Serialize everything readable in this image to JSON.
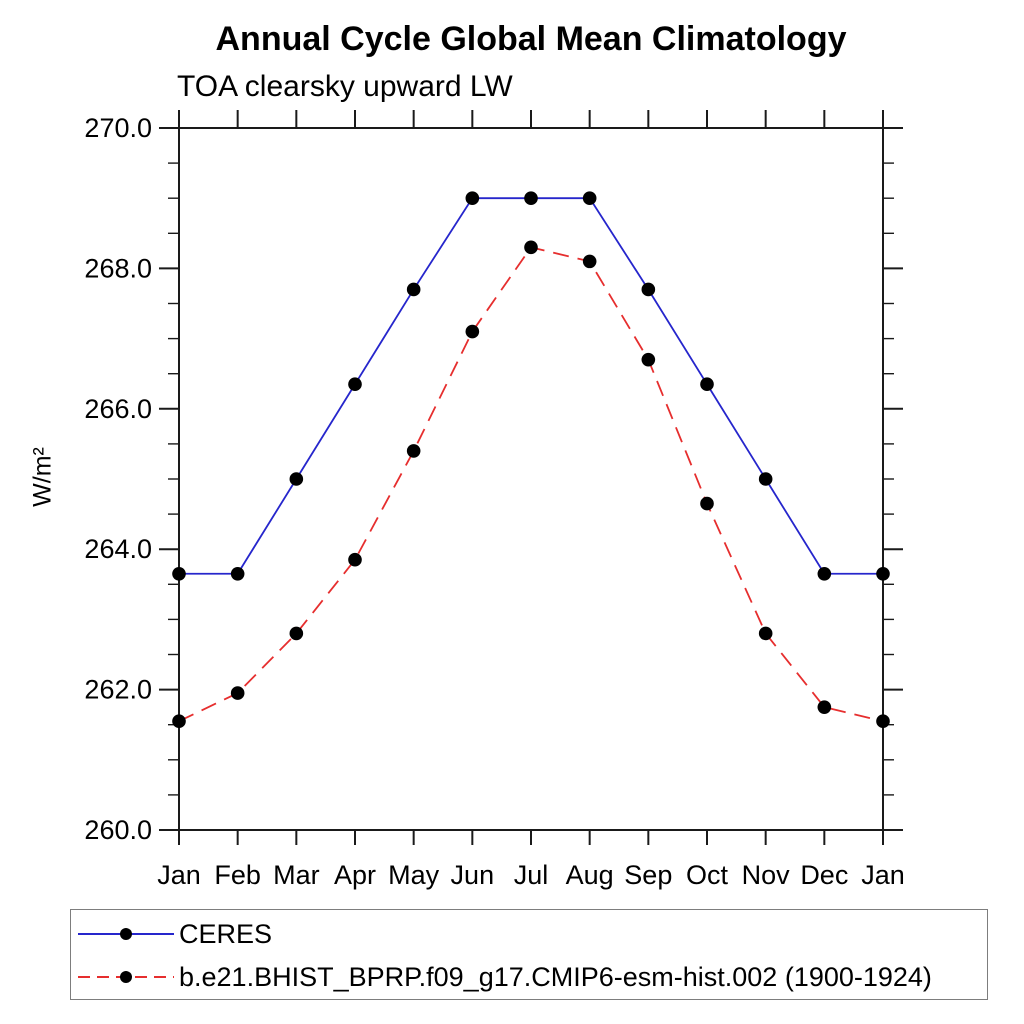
{
  "chart_data": {
    "type": "line",
    "title": "Annual Cycle Global Mean Climatology",
    "subtitle": "TOA clearsky upward LW",
    "ylabel": "W/m²",
    "xlabel": "",
    "categories": [
      "Jan",
      "Feb",
      "Mar",
      "Apr",
      "May",
      "Jun",
      "Jul",
      "Aug",
      "Sep",
      "Oct",
      "Nov",
      "Dec",
      "Jan"
    ],
    "series": [
      {
        "name": "CERES",
        "color": "#2626cc",
        "line_style": "solid",
        "marker": "filled-circle",
        "values": [
          263.65,
          263.65,
          265.0,
          266.35,
          267.7,
          269.0,
          269.0,
          269.0,
          267.7,
          266.35,
          265.0,
          263.65,
          263.65
        ]
      },
      {
        "name": "b.e21.BHIST_BPRP.f09_g17.CMIP6-esm-hist.002 (1900-1924)",
        "color": "#e62e2e",
        "line_style": "dashed",
        "marker": "filled-circle",
        "values": [
          261.55,
          261.95,
          262.8,
          263.85,
          265.4,
          267.1,
          268.3,
          268.1,
          266.7,
          264.65,
          262.8,
          261.75,
          261.55
        ]
      }
    ],
    "marker_color": "#000000",
    "ylim": [
      260.0,
      270.0
    ],
    "yticks": {
      "major": [
        260,
        262,
        264,
        266,
        268,
        270
      ],
      "labels": [
        "260.0",
        "262.0",
        "264.0",
        "266.0",
        "268.0",
        "270.0"
      ],
      "minor_step": 0.5
    },
    "grid": false,
    "legend_position": "bottom"
  }
}
